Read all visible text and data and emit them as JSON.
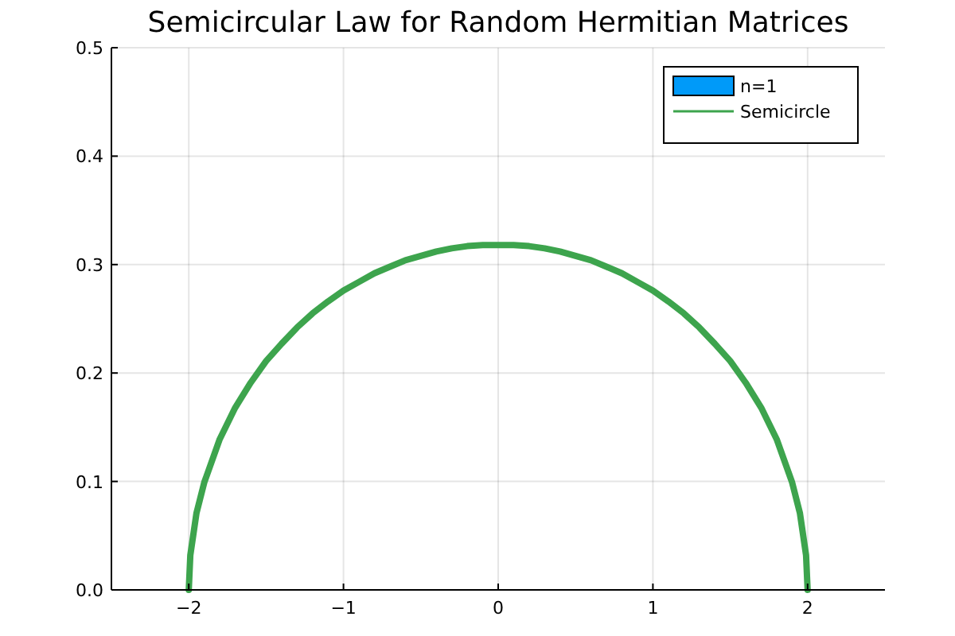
{
  "chart_data": {
    "type": "line",
    "title": "Semicircular Law for Random Hermitian Matrices",
    "xlim": [
      -2.5,
      2.5
    ],
    "ylim": [
      0,
      0.5
    ],
    "xticks": [
      {
        "value": -2,
        "label": "−2"
      },
      {
        "value": -1,
        "label": "−1"
      },
      0,
      1,
      2
    ],
    "yticks": [
      {
        "value": 0,
        "label": "0.0"
      },
      0.1,
      0.2,
      0.3,
      0.4,
      0.5
    ],
    "grid": true,
    "legend": "top right",
    "series": [
      {
        "name": "n=1",
        "type": "histogram",
        "color": "#009af9"
      },
      {
        "name": "Semicircle",
        "color": "#3da44d",
        "x": [
          -2,
          -1.99,
          -1.95,
          -1.9,
          -1.8,
          -1.7,
          -1.6,
          -1.5,
          -1.4,
          -1.3,
          -1.2,
          -1.1,
          -1,
          -0.9,
          -0.8,
          -0.7,
          -0.6,
          -0.5,
          -0.4,
          -0.3,
          -0.2,
          -0.1,
          0,
          0.1,
          0.2,
          0.3,
          0.4,
          0.5,
          0.6,
          0.7,
          0.8,
          0.9,
          1,
          1.1,
          1.2,
          1.3,
          1.4,
          1.5,
          1.6,
          1.7,
          1.8,
          1.9,
          1.95,
          1.99,
          2
        ],
        "values": [
          0,
          0.032,
          0.071,
          0.099,
          0.139,
          0.168,
          0.191,
          0.211,
          0.227,
          0.242,
          0.255,
          0.266,
          0.276,
          0.284,
          0.292,
          0.298,
          0.304,
          0.308,
          0.312,
          0.315,
          0.317,
          0.318,
          0.318,
          0.318,
          0.317,
          0.315,
          0.312,
          0.308,
          0.304,
          0.298,
          0.292,
          0.284,
          0.276,
          0.266,
          0.255,
          0.242,
          0.227,
          0.211,
          0.191,
          0.168,
          0.139,
          0.099,
          0.071,
          0.032,
          0
        ]
      }
    ]
  }
}
